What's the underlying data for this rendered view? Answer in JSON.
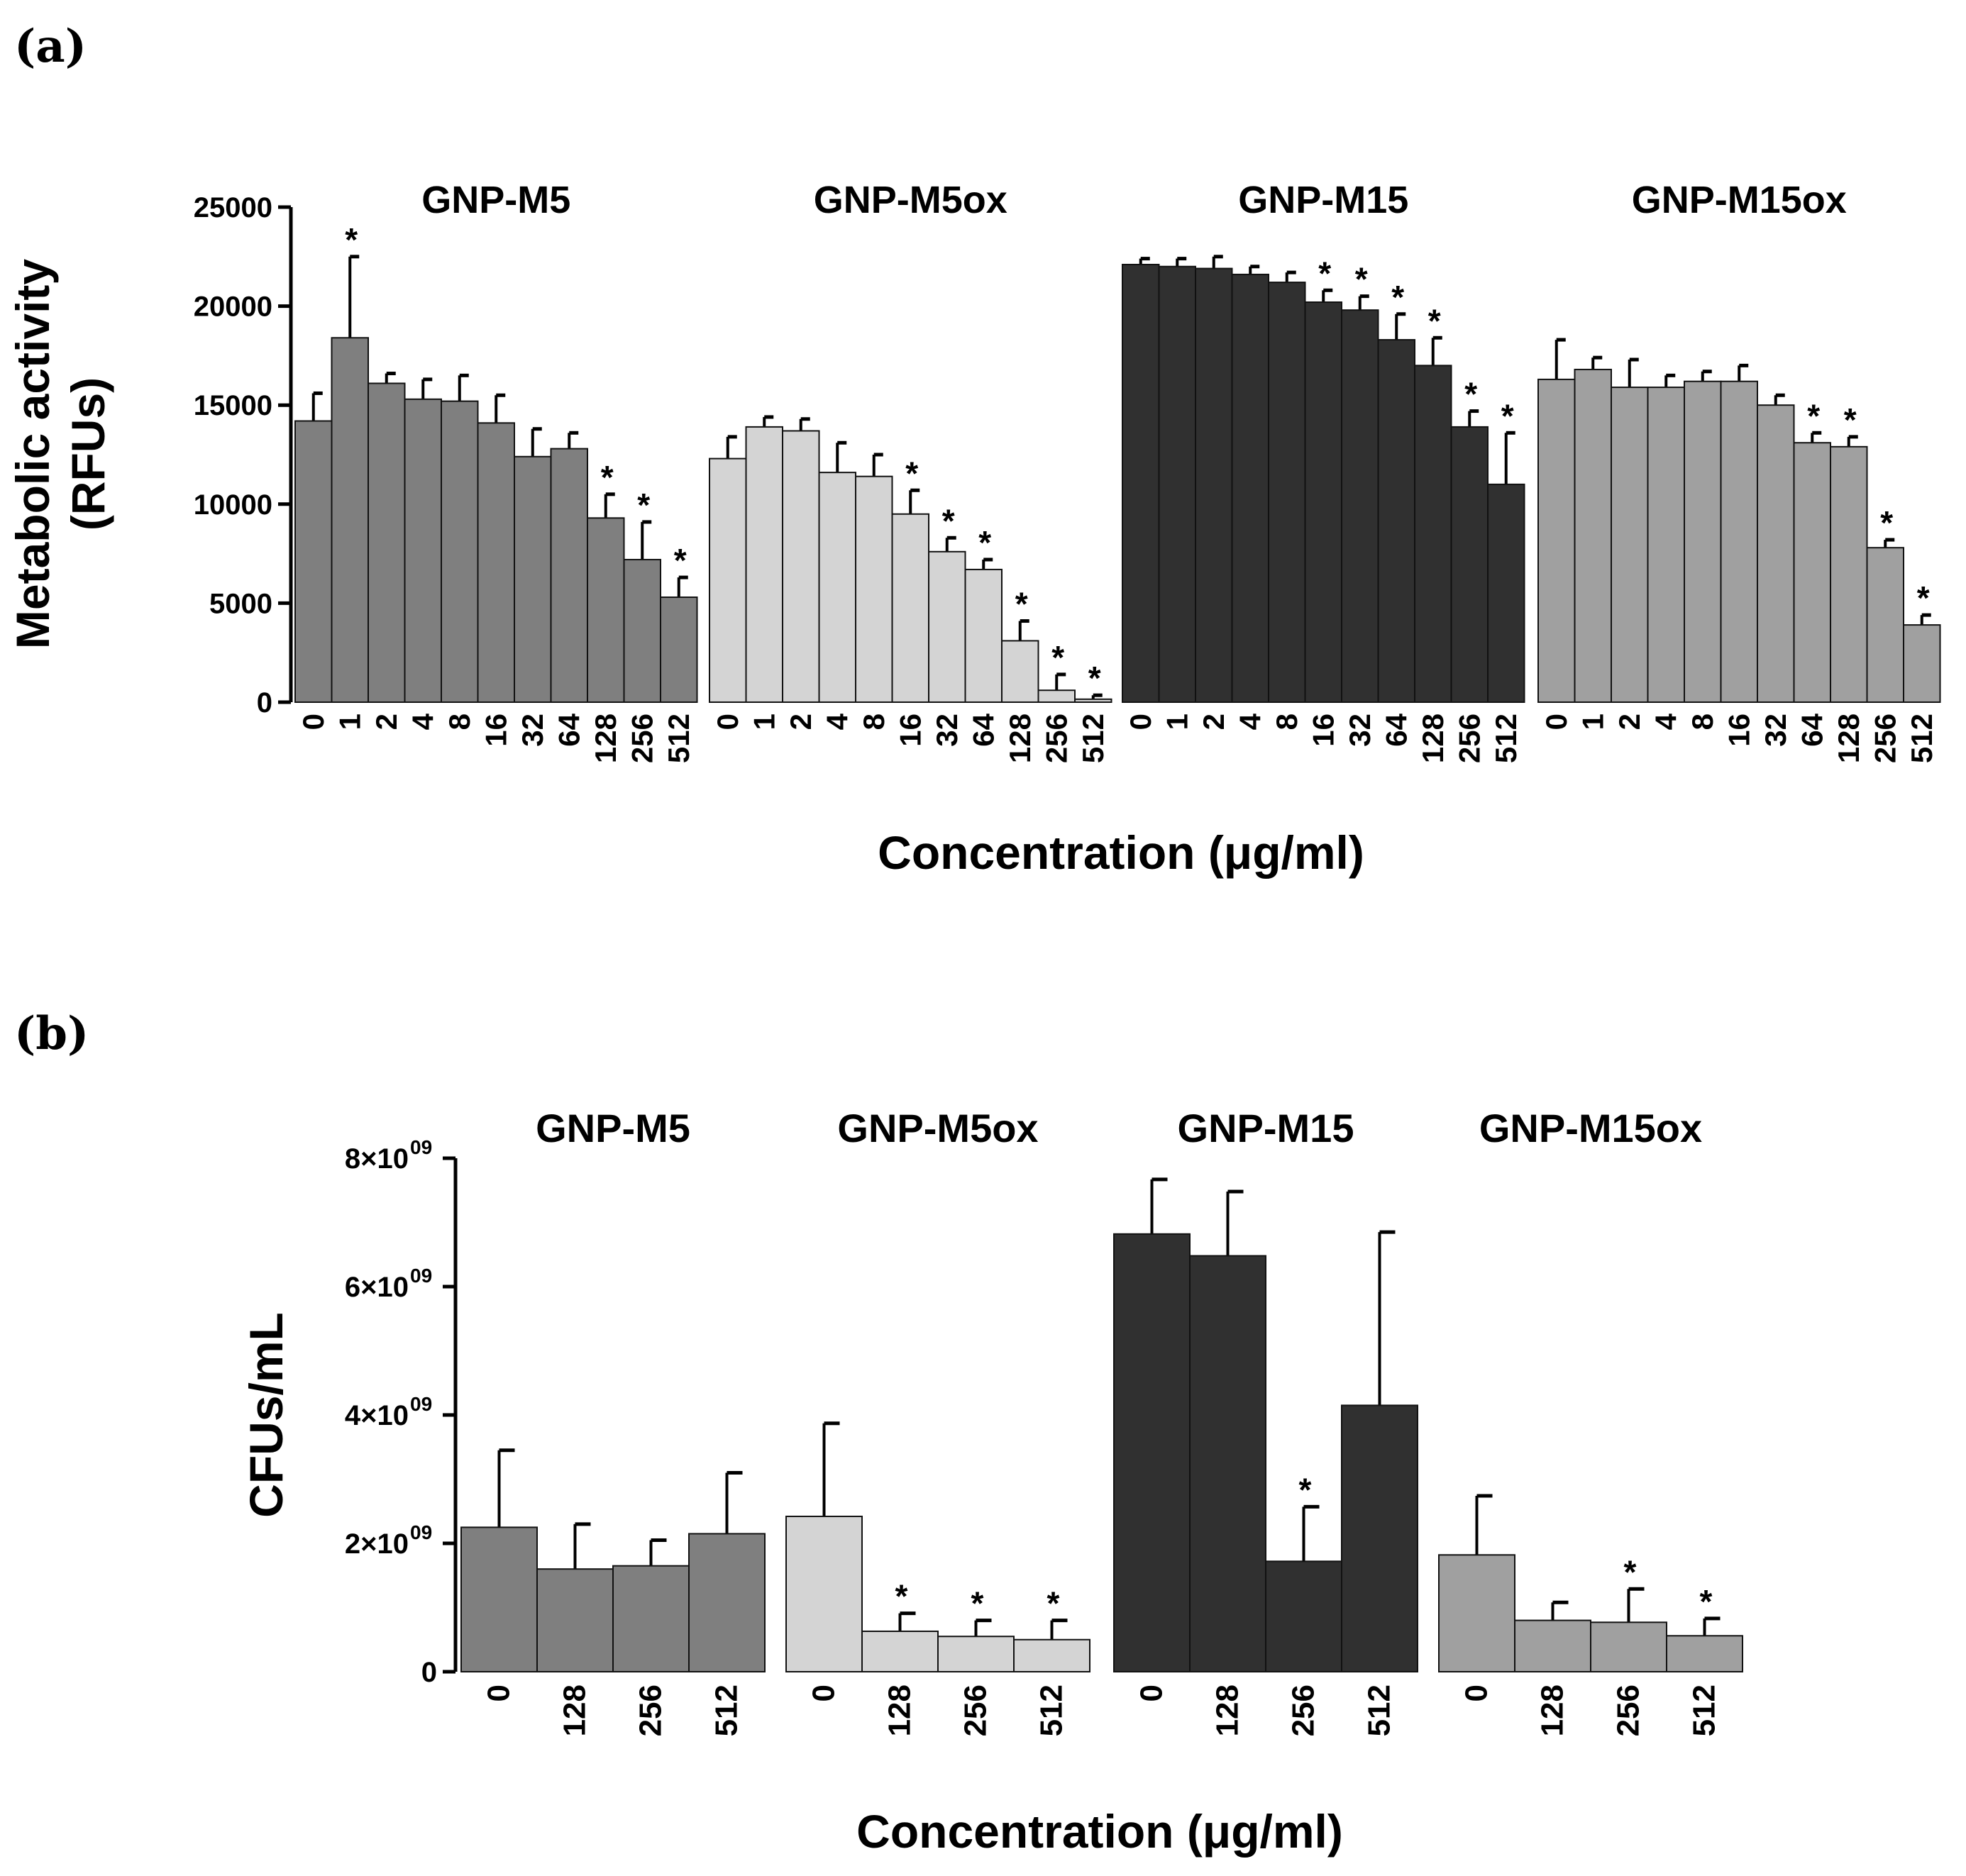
{
  "panels": {
    "a": {
      "label": "(a)"
    },
    "b": {
      "label": "(b)"
    }
  },
  "chart_data": [
    {
      "type": "bar",
      "panel": "(a)",
      "ylabel": "Metabolic activity\n(RFUs)",
      "xlabel": "Concentration (μg/ml)",
      "ylim": [
        0,
        25000
      ],
      "yticks": [
        "0",
        "5000",
        "10000",
        "15000",
        "20000",
        "25000"
      ],
      "ytick_values": [
        0,
        5000,
        10000,
        15000,
        20000,
        25000
      ],
      "groups": [
        {
          "name": "GNP-M5",
          "color": "#7f7f7f",
          "categories": [
            "0",
            "1",
            "2",
            "4",
            "8",
            "16",
            "32",
            "64",
            "128",
            "256",
            "512"
          ],
          "values": [
            14200,
            18400,
            16100,
            15300,
            15200,
            14100,
            12400,
            12800,
            9300,
            7200,
            5300
          ],
          "errors": [
            1400,
            4100,
            500,
            1000,
            1300,
            1400,
            1400,
            800,
            1200,
            1900,
            1000
          ],
          "significant": [
            false,
            true,
            false,
            false,
            false,
            false,
            false,
            false,
            true,
            true,
            true
          ]
        },
        {
          "name": "GNP-M5ox",
          "color": "#d4d4d4",
          "categories": [
            "0",
            "1",
            "2",
            "4",
            "8",
            "16",
            "32",
            "64",
            "128",
            "256",
            "512"
          ],
          "values": [
            12300,
            13900,
            13700,
            11600,
            11400,
            9500,
            7600,
            6700,
            3100,
            600,
            150
          ],
          "errors": [
            1100,
            500,
            600,
            1500,
            1100,
            1200,
            700,
            500,
            1000,
            800,
            200
          ],
          "significant": [
            false,
            false,
            false,
            false,
            false,
            true,
            true,
            true,
            true,
            true,
            true
          ]
        },
        {
          "name": "GNP-M15",
          "color": "#303030",
          "categories": [
            "0",
            "1",
            "2",
            "4",
            "8",
            "16",
            "32",
            "64",
            "128",
            "256",
            "512"
          ],
          "values": [
            22100,
            22000,
            21900,
            21600,
            21200,
            20200,
            19800,
            18300,
            17000,
            13900,
            11000
          ],
          "errors": [
            300,
            400,
            600,
            400,
            500,
            600,
            700,
            1300,
            1400,
            800,
            2600
          ],
          "significant": [
            false,
            false,
            false,
            false,
            false,
            true,
            true,
            true,
            true,
            true,
            true
          ]
        },
        {
          "name": "GNP-M15ox",
          "color": "#a0a0a0",
          "categories": [
            "0",
            "1",
            "2",
            "4",
            "8",
            "16",
            "32",
            "64",
            "128",
            "256",
            "512"
          ],
          "values": [
            16300,
            16800,
            15900,
            15900,
            16200,
            16200,
            15000,
            13100,
            12900,
            7800,
            3900
          ],
          "errors": [
            2000,
            600,
            1400,
            600,
            500,
            800,
            500,
            500,
            500,
            400,
            500
          ],
          "significant": [
            false,
            false,
            false,
            false,
            false,
            false,
            false,
            true,
            true,
            true,
            true
          ]
        }
      ]
    },
    {
      "type": "bar",
      "panel": "(b)",
      "ylabel": "CFUs/mL",
      "xlabel": "Concentration (μg/ml)",
      "ylim": [
        0,
        8000000000
      ],
      "yticks": [
        "0",
        "2×10",
        "4×10",
        "6×10",
        "8×10"
      ],
      "ytick_exponents": [
        "",
        "09",
        "09",
        "09",
        "09"
      ],
      "ytick_values": [
        0,
        2000000000,
        4000000000,
        6000000000,
        8000000000
      ],
      "groups": [
        {
          "name": "GNP-M5",
          "color": "#7f7f7f",
          "categories": [
            "0",
            "128",
            "256",
            "512"
          ],
          "values": [
            2250000000,
            1600000000,
            1650000000,
            2150000000
          ],
          "errors": [
            1200000000,
            700000000,
            400000000,
            950000000
          ],
          "significant": [
            false,
            false,
            false,
            false
          ]
        },
        {
          "name": "GNP-M5ox",
          "color": "#d4d4d4",
          "categories": [
            "0",
            "128",
            "256",
            "512"
          ],
          "values": [
            2420000000,
            630000000,
            550000000,
            500000000
          ],
          "errors": [
            1450000000,
            280000000,
            250000000,
            300000000
          ],
          "significant": [
            false,
            true,
            true,
            true
          ]
        },
        {
          "name": "GNP-M15",
          "color": "#303030",
          "categories": [
            "0",
            "128",
            "256",
            "512"
          ],
          "values": [
            6820000000,
            6480000000,
            1720000000,
            4150000000
          ],
          "errors": [
            850000000,
            1000000000,
            850000000,
            2700000000
          ],
          "significant": [
            false,
            false,
            true,
            false
          ]
        },
        {
          "name": "GNP-M15ox",
          "color": "#a0a0a0",
          "categories": [
            "0",
            "128",
            "256",
            "512"
          ],
          "values": [
            1820000000,
            800000000,
            770000000,
            560000000
          ],
          "errors": [
            920000000,
            280000000,
            520000000,
            270000000
          ],
          "significant": [
            false,
            false,
            true,
            true
          ]
        }
      ]
    }
  ]
}
